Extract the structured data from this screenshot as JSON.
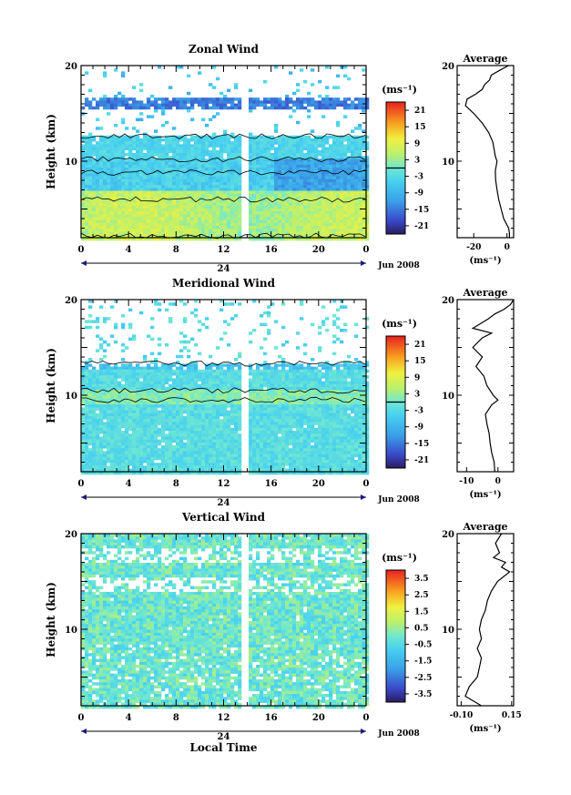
{
  "chart_data": [
    {
      "type": "heatmap",
      "title": "Zonal Wind",
      "ylabel": "Height (km)",
      "xlabel": "",
      "x_ticks": [
        "0",
        "4",
        "8",
        "12",
        "16",
        "20",
        "0"
      ],
      "day_label": "24",
      "date_label": "Jun 2008",
      "xlim": [
        0,
        24
      ],
      "ylim": [
        2,
        20
      ],
      "y_ticks": [
        "20",
        "10"
      ],
      "colorbar": {
        "unit": "(ms⁻¹)",
        "ticks": [
          "21",
          "15",
          "9",
          "3",
          "-3",
          "-9",
          "-15",
          "-21"
        ],
        "range": [
          -24,
          24
        ]
      },
      "average": {
        "title": "Average",
        "xlabel": "(ms⁻¹)",
        "x_ticks": [
          "-20",
          "0"
        ],
        "xlim": [
          -30,
          4
        ],
        "profile": [
          [
            2.0,
            1.5
          ],
          [
            2.5,
            1.5
          ],
          [
            3.0,
            1.0
          ],
          [
            3.5,
            -0.5
          ],
          [
            4.0,
            -2.0
          ],
          [
            5.0,
            -3.5
          ],
          [
            6.0,
            -5.0
          ],
          [
            7.0,
            -6.0
          ],
          [
            8.0,
            -6.8
          ],
          [
            9.0,
            -7.0
          ],
          [
            10.0,
            -6.0
          ],
          [
            10.5,
            -7.0
          ],
          [
            11.0,
            -7.5
          ],
          [
            12.0,
            -8.5
          ],
          [
            13.0,
            -11.0
          ],
          [
            14.0,
            -15.0
          ],
          [
            15.0,
            -20.0
          ],
          [
            15.8,
            -25.0
          ],
          [
            16.5,
            -24.0
          ],
          [
            17.0,
            -19.0
          ],
          [
            17.5,
            -15.0
          ],
          [
            18.0,
            -13.5
          ],
          [
            18.5,
            -10.5
          ],
          [
            19.0,
            -9.5
          ],
          [
            19.5,
            -4.5
          ],
          [
            20.0,
            1.0
          ]
        ]
      },
      "contour_levels": [
        0
      ]
    },
    {
      "type": "heatmap",
      "title": "Meridional Wind",
      "ylabel": "Height (km)",
      "xlabel": "",
      "x_ticks": [
        "0",
        "4",
        "8",
        "12",
        "16",
        "20",
        "0"
      ],
      "day_label": "24",
      "date_label": "Jun 2008",
      "xlim": [
        0,
        24
      ],
      "ylim": [
        2,
        20
      ],
      "y_ticks": [
        "20",
        "10"
      ],
      "colorbar": {
        "unit": "(ms⁻¹)",
        "ticks": [
          "21",
          "15",
          "9",
          "3",
          "-3",
          "-9",
          "-15",
          "-21"
        ],
        "range": [
          -24,
          24
        ]
      },
      "average": {
        "title": "Average",
        "xlabel": "(ms⁻¹)",
        "x_ticks": [
          "-10",
          "0"
        ],
        "xlim": [
          -13,
          5
        ],
        "profile": [
          [
            2.0,
            -1.0
          ],
          [
            3.0,
            -1.2
          ],
          [
            4.0,
            -2.0
          ],
          [
            5.0,
            -2.5
          ],
          [
            6.0,
            -2.8
          ],
          [
            7.0,
            -3.5
          ],
          [
            8.0,
            -4.0
          ],
          [
            9.0,
            -2.0
          ],
          [
            9.5,
            0.0
          ],
          [
            10.0,
            -1.5
          ],
          [
            11.0,
            -3.5
          ],
          [
            12.0,
            -4.5
          ],
          [
            13.0,
            -7.0
          ],
          [
            14.0,
            -5.0
          ],
          [
            15.0,
            -8.0
          ],
          [
            16.0,
            -5.0
          ],
          [
            16.5,
            -2.0
          ],
          [
            17.0,
            -8.0
          ],
          [
            18.0,
            -3.0
          ],
          [
            18.5,
            -1.0
          ],
          [
            19.0,
            2.0
          ],
          [
            19.5,
            4.0
          ],
          [
            20.0,
            5.0
          ]
        ]
      },
      "contour_levels": [
        0
      ]
    },
    {
      "type": "heatmap",
      "title": "Vertical Wind",
      "ylabel": "Height (km)",
      "xlabel": "Local Time",
      "x_ticks": [
        "0",
        "4",
        "8",
        "12",
        "16",
        "20",
        "0"
      ],
      "day_label": "24",
      "date_label": "Jun 2008",
      "xlim": [
        0,
        24
      ],
      "ylim": [
        2,
        20
      ],
      "y_ticks": [
        "20",
        "10"
      ],
      "colorbar": {
        "unit": "(ms⁻¹)",
        "ticks": [
          "3.5",
          "2.5",
          "1.5",
          "0.5",
          "-0.5",
          "-1.5",
          "-2.5",
          "-3.5"
        ],
        "range": [
          -4,
          4
        ]
      },
      "average": {
        "title": "Average",
        "xlabel": "(ms⁻¹)",
        "x_ticks": [
          "-0.10",
          "0.15"
        ],
        "xlim": [
          -0.12,
          0.16
        ],
        "profile": [
          [
            2.0,
            0.0
          ],
          [
            3.0,
            -0.08
          ],
          [
            4.0,
            -0.06
          ],
          [
            5.0,
            -0.02
          ],
          [
            6.0,
            -0.01
          ],
          [
            7.0,
            0.0
          ],
          [
            8.0,
            -0.02
          ],
          [
            9.0,
            0.0
          ],
          [
            10.0,
            -0.01
          ],
          [
            11.0,
            0.0
          ],
          [
            12.0,
            0.02
          ],
          [
            13.0,
            0.03
          ],
          [
            14.0,
            0.05
          ],
          [
            15.0,
            0.08
          ],
          [
            16.0,
            0.14
          ],
          [
            16.5,
            0.1
          ],
          [
            17.0,
            0.12
          ],
          [
            17.5,
            0.06
          ],
          [
            18.0,
            0.09
          ],
          [
            19.0,
            0.07
          ],
          [
            20.0,
            0.1
          ]
        ]
      },
      "contour_levels": []
    }
  ]
}
